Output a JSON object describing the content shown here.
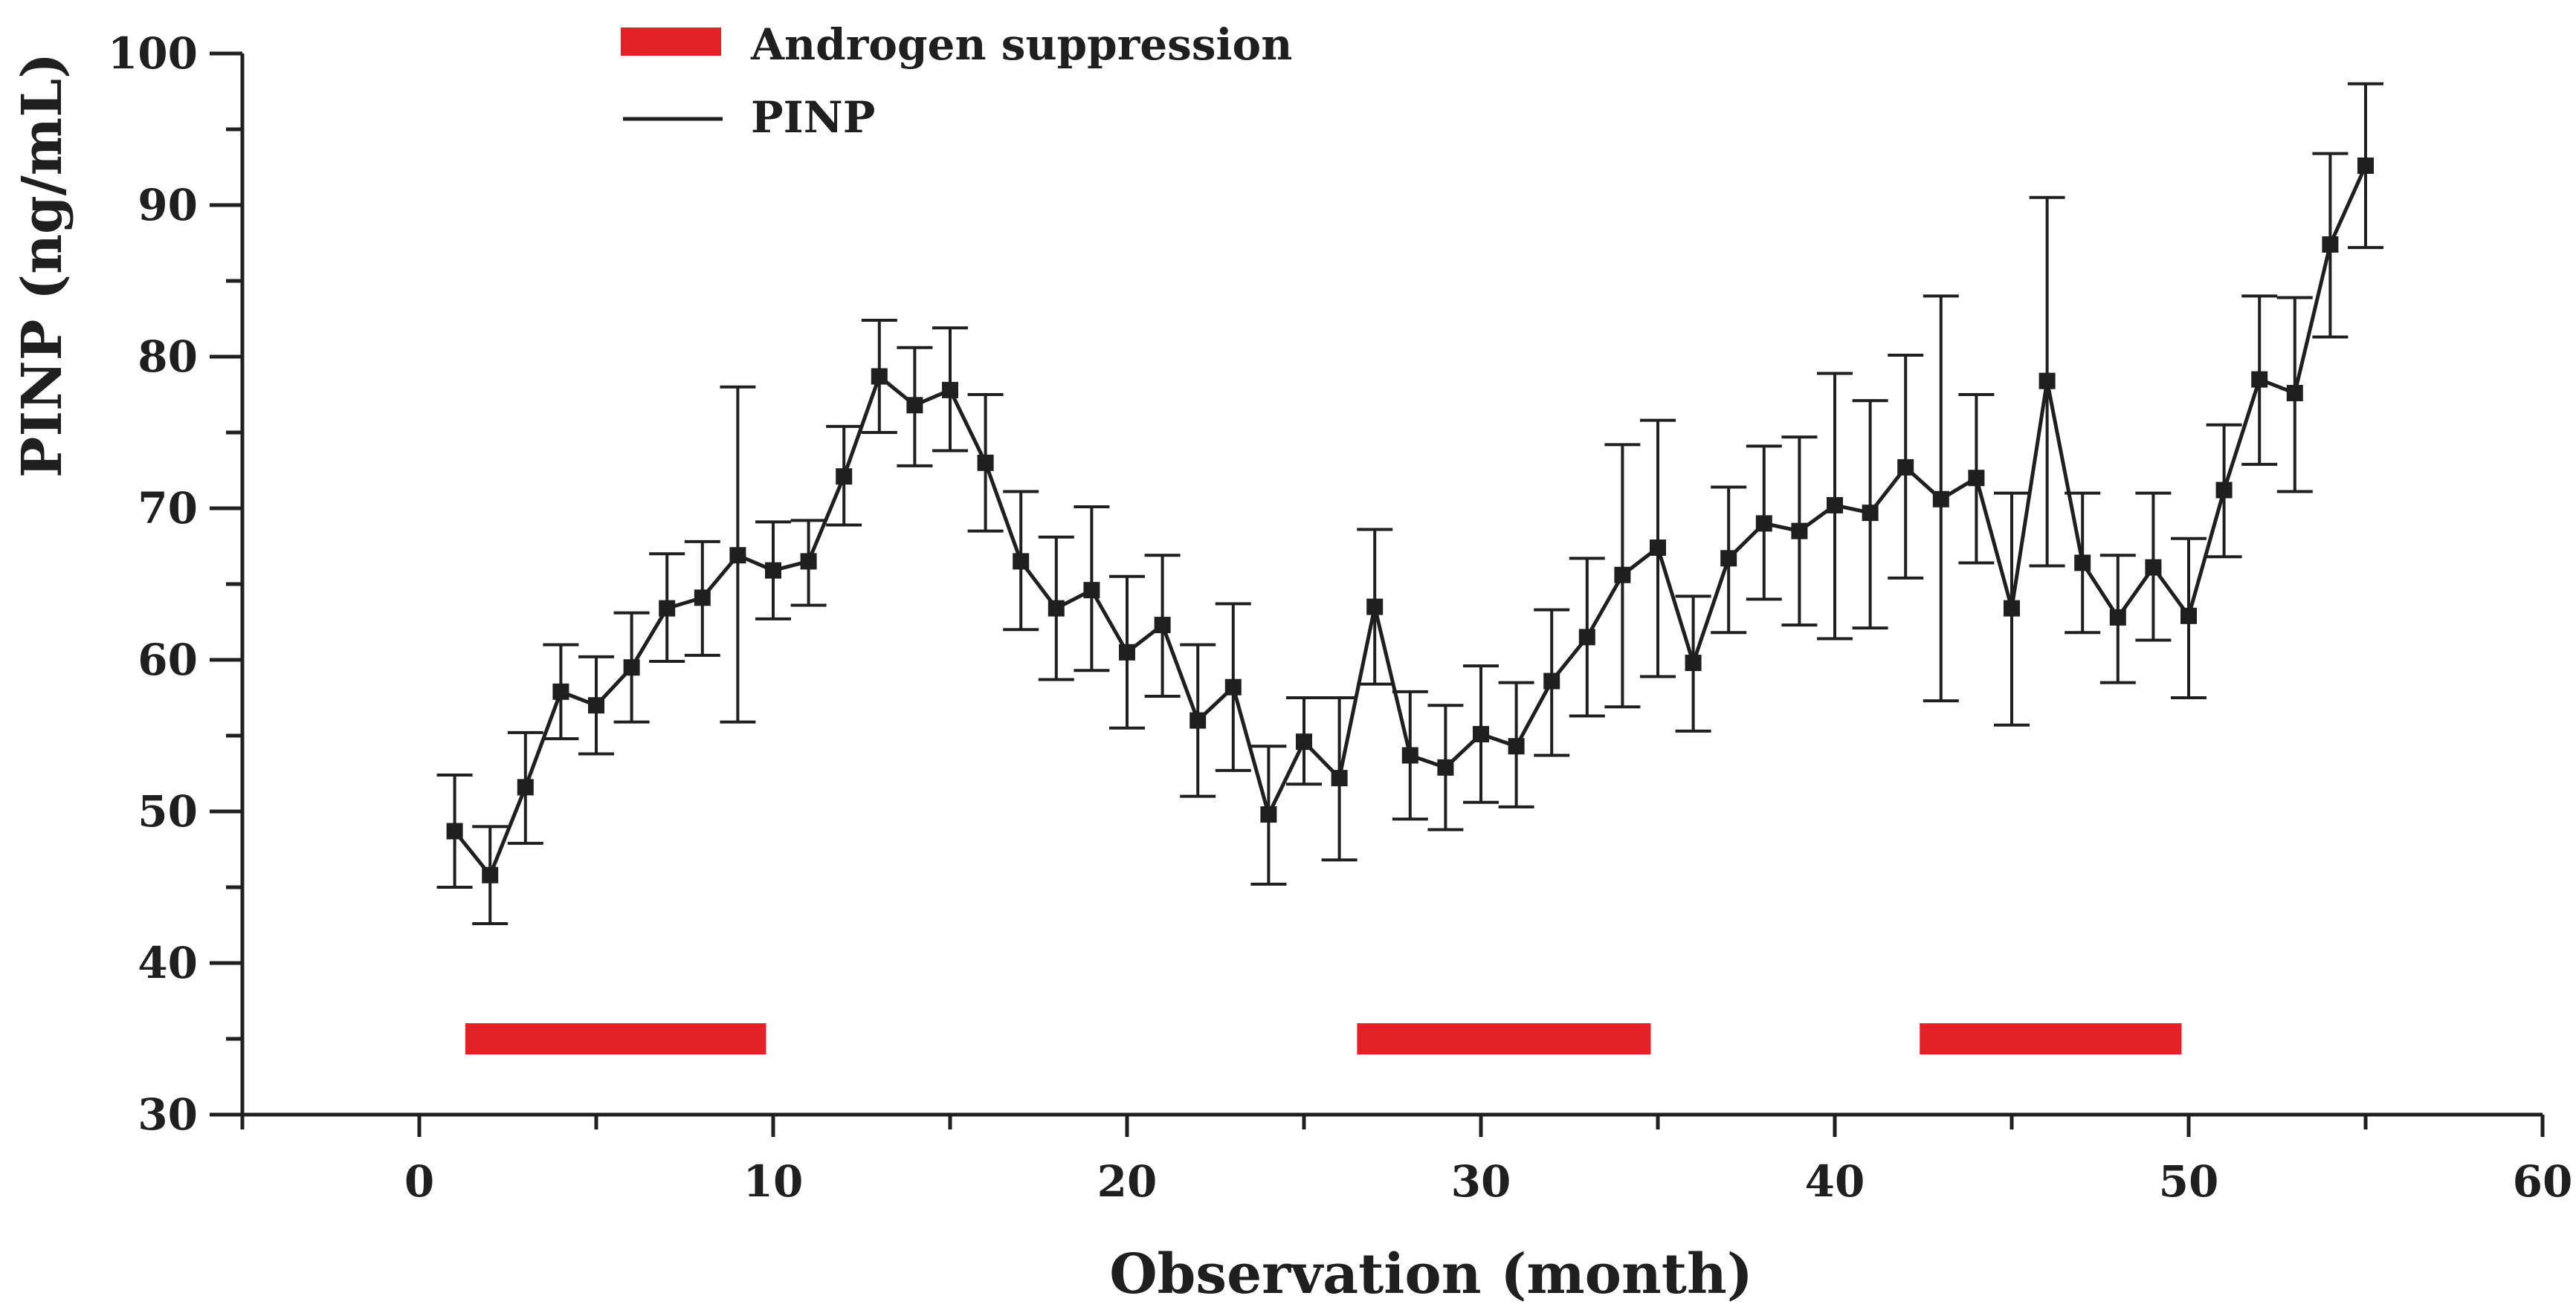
{
  "chart_data": {
    "type": "line",
    "title": "",
    "xlabel": "Observation (month)",
    "ylabel": "PINP (ng/mL)",
    "xlim": [
      -5,
      60
    ],
    "ylim": [
      30,
      100
    ],
    "xticks": [
      0,
      10,
      20,
      30,
      40,
      50,
      60
    ],
    "yticks": [
      30,
      40,
      50,
      60,
      70,
      80,
      90,
      100
    ],
    "legend": {
      "placement": "top-left",
      "entries": [
        {
          "label": "Androgen suppression",
          "kind": "bar",
          "color": "#e32227"
        },
        {
          "label": "PINP",
          "kind": "line",
          "color": "#1f1f1f"
        }
      ]
    },
    "androgen_suppression": {
      "y": 35,
      "color": "#e32227",
      "intervals": [
        [
          1.3,
          9.8
        ],
        [
          26.5,
          34.8
        ],
        [
          42.4,
          49.8
        ]
      ]
    },
    "series": [
      {
        "name": "PINP",
        "color": "#1f1f1f",
        "x": [
          1,
          2,
          3,
          4,
          5,
          6,
          7,
          8,
          9,
          10,
          11,
          12,
          13,
          14,
          15,
          16,
          17,
          18,
          19,
          20,
          21,
          22,
          23,
          24,
          25,
          26,
          27,
          28,
          29,
          30,
          31,
          32,
          33,
          34,
          35,
          36,
          37,
          38,
          39,
          40,
          41,
          42,
          43,
          44,
          45,
          46,
          47,
          48,
          49,
          50,
          51,
          52,
          53,
          54,
          55
        ],
        "values": [
          48.7,
          45.8,
          51.6,
          57.9,
          57.0,
          59.5,
          63.4,
          64.1,
          66.9,
          65.9,
          66.5,
          72.1,
          78.7,
          76.8,
          77.8,
          73.0,
          66.5,
          63.4,
          64.6,
          60.5,
          62.3,
          56.0,
          58.2,
          49.8,
          54.6,
          52.2,
          63.5,
          53.7,
          52.9,
          55.1,
          54.3,
          58.6,
          61.5,
          65.6,
          67.4,
          59.8,
          66.7,
          69.0,
          68.5,
          70.2,
          69.7,
          72.7,
          70.6,
          72.0,
          63.4,
          78.4,
          66.4,
          62.8,
          66.1,
          62.9,
          71.2,
          78.5,
          77.6,
          87.4,
          92.6
        ],
        "err_upper": [
          52.4,
          49.0,
          55.2,
          61.0,
          60.2,
          63.1,
          67.0,
          67.8,
          78.0,
          69.1,
          69.2,
          75.4,
          82.4,
          80.6,
          81.9,
          77.5,
          71.1,
          68.1,
          70.1,
          65.5,
          66.9,
          61.0,
          63.7,
          54.3,
          57.5,
          57.5,
          68.6,
          57.9,
          57.0,
          59.6,
          58.5,
          63.3,
          66.7,
          74.2,
          75.8,
          64.2,
          71.4,
          74.1,
          74.7,
          78.9,
          77.1,
          80.1,
          84.0,
          77.5,
          71.0,
          90.5,
          71.0,
          66.9,
          71.0,
          68.0,
          75.5,
          84.0,
          83.9,
          93.4,
          98.0
        ],
        "err_lower": [
          45.0,
          42.6,
          47.9,
          54.8,
          53.8,
          55.9,
          59.9,
          60.3,
          55.9,
          62.7,
          63.6,
          68.9,
          75.0,
          72.8,
          73.8,
          68.5,
          62.0,
          58.7,
          59.3,
          55.5,
          57.6,
          51.0,
          52.7,
          45.2,
          51.8,
          46.8,
          58.4,
          49.5,
          48.8,
          50.6,
          50.3,
          53.7,
          56.3,
          56.9,
          58.9,
          55.3,
          61.8,
          64.0,
          62.3,
          61.4,
          62.1,
          65.4,
          57.3,
          66.4,
          55.7,
          66.2,
          61.8,
          58.5,
          61.3,
          57.5,
          66.8,
          72.9,
          71.1,
          81.3,
          87.2
        ]
      }
    ]
  }
}
